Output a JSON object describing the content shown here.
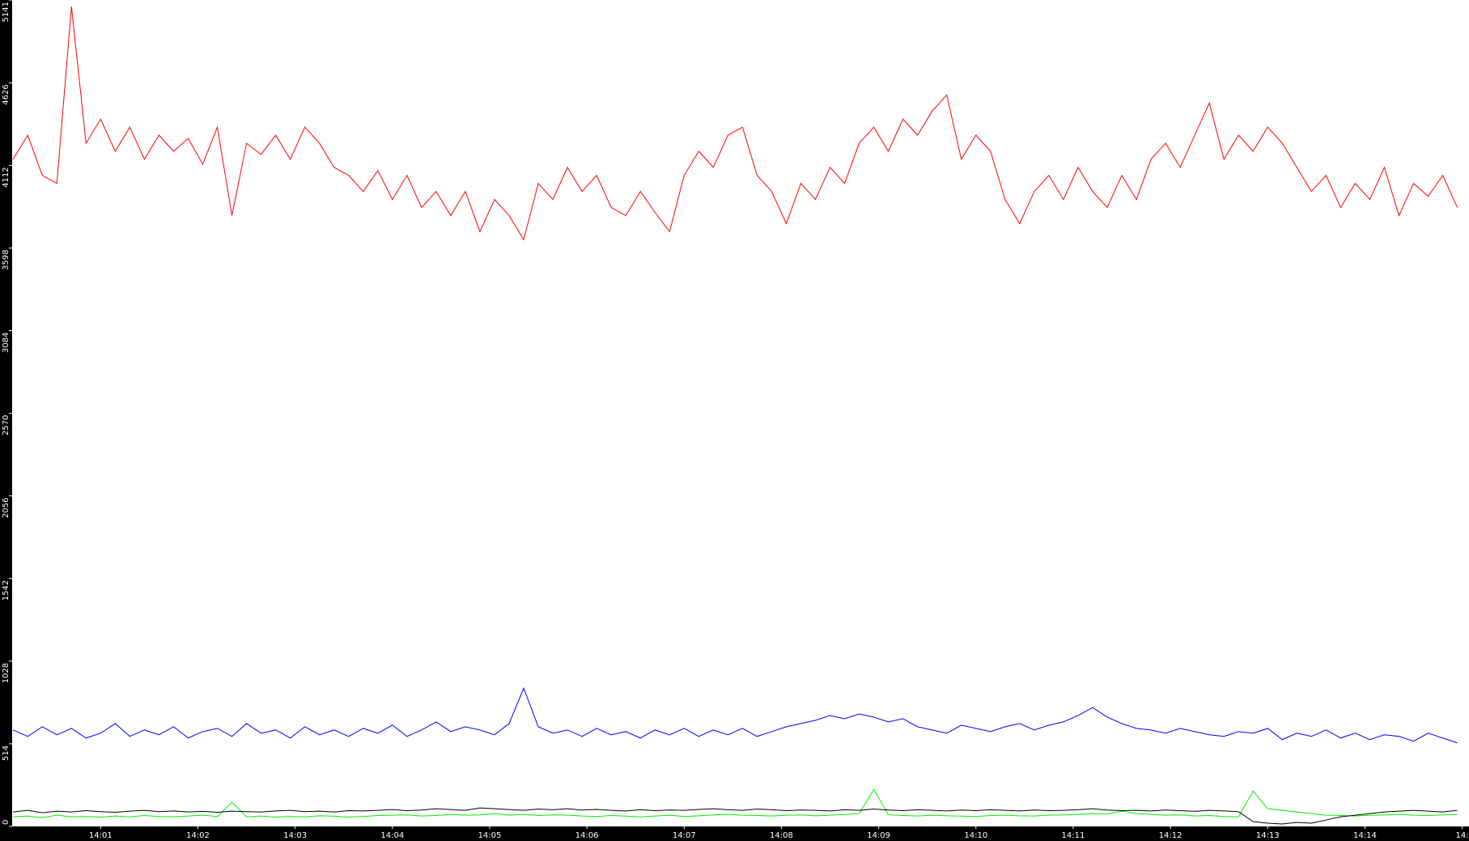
{
  "chart_data": {
    "type": "line",
    "x": [
      840.1,
      840.25,
      840.4,
      840.55,
      840.7,
      840.85,
      841,
      841.15,
      841.3,
      841.45,
      841.6,
      841.75,
      841.9,
      842.05,
      842.2,
      842.35,
      842.5,
      842.65,
      842.8,
      842.95,
      843.1,
      843.25,
      843.4,
      843.55,
      843.7,
      843.85,
      844,
      844.15,
      844.3,
      844.45,
      844.6,
      844.75,
      844.9,
      845.05,
      845.2,
      845.35,
      845.5,
      845.65,
      845.8,
      845.95,
      846.1,
      846.25,
      846.4,
      846.55,
      846.7,
      846.85,
      847,
      847.15,
      847.3,
      847.45,
      847.6,
      847.75,
      847.9,
      848.05,
      848.2,
      848.35,
      848.5,
      848.65,
      848.8,
      848.95,
      849.1,
      849.25,
      849.4,
      849.55,
      849.7,
      849.85,
      850,
      850.15,
      850.3,
      850.45,
      850.6,
      850.75,
      850.9,
      851.05,
      851.2,
      851.35,
      851.5,
      851.65,
      851.8,
      851.95,
      852.1,
      852.25,
      852.4,
      852.55,
      852.7,
      852.85,
      853,
      853.15,
      853.3,
      853.45,
      853.6,
      853.75,
      853.9,
      854.05,
      854.2,
      854.35,
      854.5,
      854.65,
      854.8,
      854.95
    ],
    "series": [
      {
        "color": "#ff0000",
        "values": [
          4150,
          4300,
          4050,
          4000,
          5100,
          4250,
          4400,
          4200,
          4350,
          4150,
          4300,
          4200,
          4280,
          4120,
          4350,
          3800,
          4250,
          4180,
          4300,
          4150,
          4350,
          4250,
          4100,
          4050,
          3950,
          4080,
          3900,
          4050,
          3850,
          3950,
          3800,
          3950,
          3700,
          3900,
          3800,
          3650,
          4000,
          3900,
          4100,
          3950,
          4050,
          3850,
          3800,
          3950,
          3820,
          3700,
          4050,
          4200,
          4100,
          4300,
          4350,
          4050,
          3950,
          3750,
          4000,
          3900,
          4100,
          4000,
          4250,
          4350,
          4200,
          4400,
          4300,
          4450,
          4550,
          4150,
          4300,
          4200,
          3900,
          3750,
          3950,
          4050,
          3900,
          4100,
          3950,
          3850,
          4050,
          3900,
          4150,
          4250,
          4100,
          4300,
          4500,
          4150,
          4300,
          4200,
          4350,
          4250,
          4100,
          3950,
          4050,
          3850,
          4000,
          3900,
          4100,
          3800,
          4000,
          3920,
          4050,
          3850
        ]
      },
      {
        "color": "#0000ff",
        "values": [
          600,
          560,
          620,
          570,
          610,
          550,
          580,
          640,
          560,
          600,
          570,
          620,
          550,
          590,
          610,
          560,
          640,
          580,
          600,
          550,
          620,
          570,
          600,
          560,
          610,
          580,
          630,
          560,
          600,
          650,
          590,
          620,
          600,
          570,
          640,
          860,
          620,
          580,
          600,
          560,
          610,
          570,
          590,
          550,
          600,
          570,
          610,
          560,
          600,
          570,
          610,
          560,
          590,
          620,
          640,
          660,
          690,
          670,
          700,
          680,
          650,
          670,
          620,
          600,
          580,
          630,
          610,
          590,
          620,
          640,
          600,
          630,
          650,
          690,
          740,
          680,
          640,
          610,
          600,
          580,
          610,
          590,
          570,
          560,
          590,
          580,
          610,
          540,
          580,
          560,
          600,
          550,
          580,
          540,
          570,
          560,
          530,
          580,
          550,
          520
        ]
      },
      {
        "color": "#00ee00",
        "values": [
          60,
          65,
          55,
          70,
          60,
          62,
          58,
          65,
          60,
          68,
          62,
          60,
          65,
          70,
          62,
          150,
          60,
          65,
          58,
          62,
          60,
          66,
          64,
          58,
          62,
          68,
          70,
          72,
          65,
          68,
          75,
          70,
          72,
          80,
          70,
          75,
          68,
          72,
          70,
          65,
          62,
          68,
          64,
          60,
          65,
          70,
          62,
          66,
          72,
          75,
          70,
          68,
          65,
          70,
          72,
          66,
          70,
          74,
          80,
          230,
          72,
          68,
          65,
          70,
          66,
          64,
          62,
          68,
          70,
          66,
          65,
          70,
          72,
          75,
          80,
          78,
          95,
          80,
          75,
          70,
          72,
          65,
          68,
          62,
          60,
          220,
          110,
          100,
          90,
          80,
          70,
          68,
          65,
          70,
          72,
          75,
          70,
          68,
          72,
          75
        ]
      },
      {
        "color": "#000000",
        "values": [
          90,
          100,
          85,
          95,
          90,
          98,
          92,
          88,
          95,
          100,
          92,
          96,
          90,
          94,
          88,
          95,
          92,
          90,
          96,
          100,
          92,
          95,
          90,
          98,
          96,
          100,
          105,
          98,
          102,
          110,
          105,
          100,
          115,
          110,
          105,
          100,
          108,
          104,
          110,
          102,
          106,
          100,
          96,
          104,
          98,
          102,
          100,
          106,
          110,
          104,
          100,
          108,
          104,
          98,
          102,
          100,
          96,
          104,
          100,
          108,
          102,
          98,
          104,
          100,
          96,
          102,
          98,
          104,
          100,
          96,
          102,
          98,
          100,
          104,
          110,
          102,
          98,
          100,
          96,
          102,
          98,
          94,
          100,
          96,
          92,
          30,
          20,
          15,
          25,
          20,
          40,
          60,
          70,
          80,
          90,
          95,
          100,
          95,
          90,
          100
        ]
      }
    ],
    "xlim": [
      840.09,
      855.07
    ],
    "xticks": [
      {
        "value": 841,
        "label": "14:01"
      },
      {
        "value": 842,
        "label": "14:02"
      },
      {
        "value": 843,
        "label": "14:03"
      },
      {
        "value": 844,
        "label": "14:04"
      },
      {
        "value": 845,
        "label": "14:05"
      },
      {
        "value": 846,
        "label": "14:06"
      },
      {
        "value": 847,
        "label": "14:07"
      },
      {
        "value": 848,
        "label": "14:08"
      },
      {
        "value": 849,
        "label": "14:09"
      },
      {
        "value": 850,
        "label": "14:10"
      },
      {
        "value": 851,
        "label": "14:11"
      },
      {
        "value": 852,
        "label": "14:12"
      },
      {
        "value": 853,
        "label": "14:13"
      },
      {
        "value": 854,
        "label": "14:14"
      },
      {
        "value": 855,
        "label": "14:"
      }
    ],
    "ylim": [
      0,
      5141
    ],
    "yticks": [
      0,
      514,
      1028,
      1542,
      2056,
      2570,
      3084,
      3598,
      4112,
      4626,
      5141
    ]
  }
}
